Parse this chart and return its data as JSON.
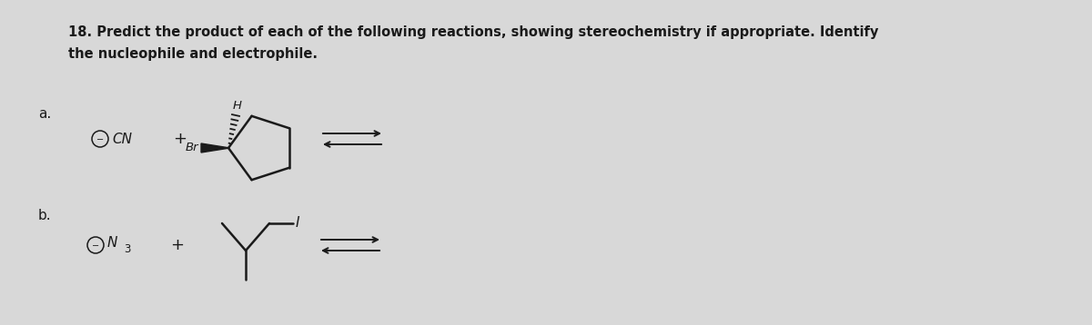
{
  "bg_color": "#d8d8d8",
  "text_color": "#1a1a1a",
  "title_line1": "18. Predict the product of each of the following reactions, showing stereochemistry if appropriate. Identify",
  "title_line2": "the nucleophile and electrophile.",
  "label_a": "a.",
  "label_b": "b.",
  "title_fontsize": 10.5,
  "label_fontsize": 11,
  "chem_fontsize": 11
}
